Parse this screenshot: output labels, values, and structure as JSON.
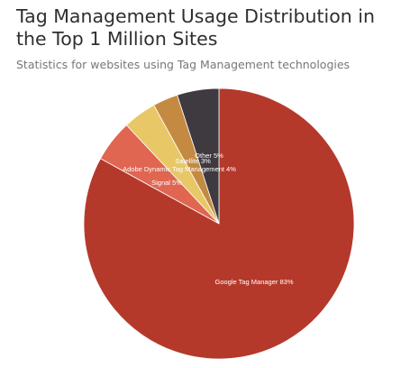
{
  "header": {
    "title": "Tag Management Usage Distribution in the Top 1 Million Sites",
    "subtitle": "Statistics for websites using Tag Management technologies"
  },
  "chart_data": {
    "type": "pie",
    "slices": [
      {
        "label": "Google Tag Manager 83%",
        "value": 83,
        "color": "#b5392b"
      },
      {
        "label": "Signal 5%",
        "value": 5,
        "color": "#e06652"
      },
      {
        "label": "Adobe Dynamic Tag Management 4%",
        "value": 4,
        "color": "#e8c766"
      },
      {
        "label": "Satellite 3%",
        "value": 3,
        "color": "#c48a42"
      },
      {
        "label": "Other 5%",
        "value": 5,
        "color": "#3f3a3f"
      }
    ],
    "start": "top",
    "direction": "clockwise",
    "legend": "none",
    "labels": "on-slice"
  }
}
